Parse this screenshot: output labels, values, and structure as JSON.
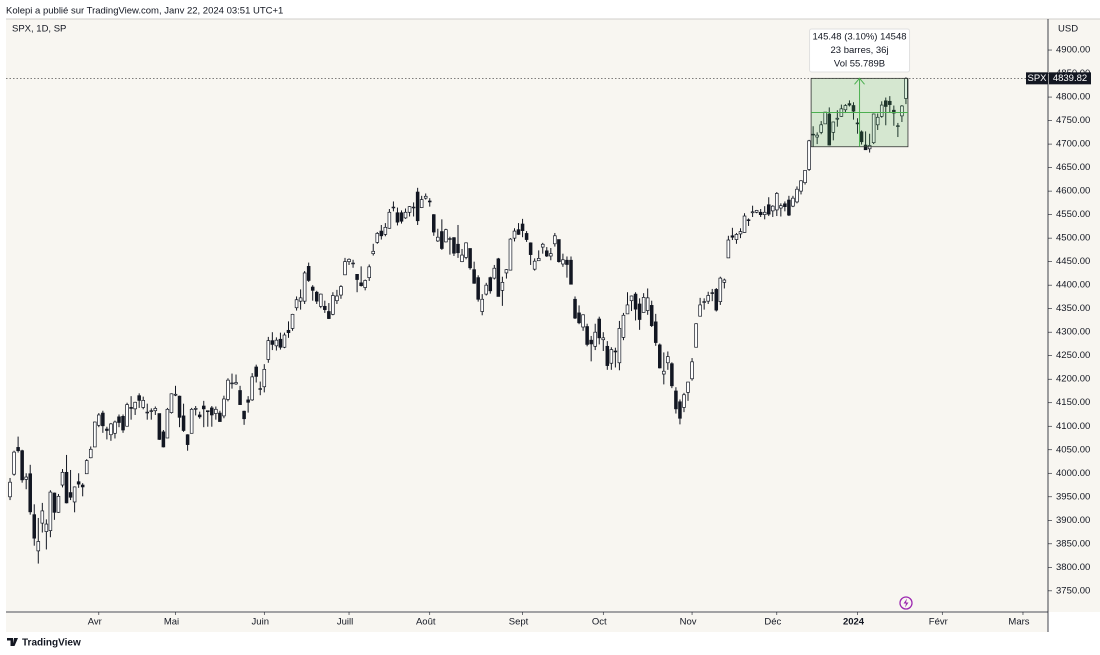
{
  "header": "Kolepi a publié sur TradingView.com, Janv 22, 2024 03:51 UTC+1",
  "footer": "TradingView",
  "chart_data": {
    "type": "candlestick",
    "title": "SPX, 1D, SP",
    "currency": "USD",
    "symbol": "SPX",
    "up_color": "#ffffff",
    "down_color": "#131722",
    "outline": "#131722",
    "xlim": [
      -1,
      257.2
    ],
    "ylim": [
      3705,
      4966
    ],
    "xticks": [
      {
        "value": 22,
        "label": "Avr"
      },
      {
        "value": 41,
        "label": "Mai"
      },
      {
        "value": 63,
        "label": "Juin"
      },
      {
        "value": 84,
        "label": "Juill"
      },
      {
        "value": 104,
        "label": "Août"
      },
      {
        "value": 127,
        "label": "Sept"
      },
      {
        "value": 147,
        "label": "Oct"
      },
      {
        "value": 169,
        "label": "Nov"
      },
      {
        "value": 190,
        "label": "Déc"
      },
      {
        "value": 210,
        "label": "2024"
      },
      {
        "value": 231,
        "label": "Févr"
      },
      {
        "value": 251,
        "label": "Mars"
      }
    ],
    "yticks": [
      {
        "value": 3750,
        "label": "3750.00"
      },
      {
        "value": 3800,
        "label": "3800.00"
      },
      {
        "value": 3850,
        "label": "3850.00"
      },
      {
        "value": 3900,
        "label": "3900.00"
      },
      {
        "value": 3950,
        "label": "3950.00"
      },
      {
        "value": 4000,
        "label": "4000.00"
      },
      {
        "value": 4050,
        "label": "4050.00"
      },
      {
        "value": 4100,
        "label": "4100.00"
      },
      {
        "value": 4150,
        "label": "4150.00"
      },
      {
        "value": 4200,
        "label": "4200.00"
      },
      {
        "value": 4250,
        "label": "4250.00"
      },
      {
        "value": 4300,
        "label": "4300.00"
      },
      {
        "value": 4350,
        "label": "4350.00"
      },
      {
        "value": 4400,
        "label": "4400.00"
      },
      {
        "value": 4450,
        "label": "4450.00"
      },
      {
        "value": 4500,
        "label": "4500.00"
      },
      {
        "value": 4550,
        "label": "4550.00"
      },
      {
        "value": 4600,
        "label": "4600.00"
      },
      {
        "value": 4650,
        "label": "4650.00"
      },
      {
        "value": 4700,
        "label": "4700.00"
      },
      {
        "value": 4750,
        "label": "4750.00"
      },
      {
        "value": 4800,
        "label": "4800.00"
      },
      {
        "value": 4850,
        "label": "4850.00"
      },
      {
        "value": 4900,
        "label": "4900.00"
      }
    ],
    "measure": {
      "from_bar": 199,
      "to_bar": 222,
      "from_price": 4694.34,
      "to_price": 4839.82,
      "color": "#4caf50",
      "lines": [
        "145.48 (3.10%) 14548",
        "23 barres, 36j",
        "Vol 55.789B"
      ]
    },
    "ohlc": [
      [
        3950,
        3990,
        3943,
        3981
      ],
      [
        3998,
        4048,
        3995,
        4045
      ],
      [
        4055,
        4078,
        4044,
        4048
      ],
      [
        4048,
        4050,
        3980,
        3986
      ],
      [
        3987,
        4000,
        3966,
        3992
      ],
      [
        3999,
        4018,
        3912,
        3918
      ],
      [
        3912,
        3934,
        3846,
        3862
      ],
      [
        3835,
        3905,
        3808,
        3855
      ],
      [
        3894,
        3937,
        3874,
        3920
      ],
      [
        3876,
        3902,
        3838,
        3892
      ],
      [
        3878,
        3964,
        3864,
        3960
      ],
      [
        3958,
        3959,
        3901,
        3917
      ],
      [
        3917,
        3956,
        3916,
        3951
      ],
      [
        3975,
        4009,
        3970,
        4002
      ],
      [
        4002,
        4039,
        3936,
        3937
      ],
      [
        3959,
        4007,
        3943,
        3949
      ],
      [
        3939,
        3972,
        3917,
        3971
      ],
      [
        3982,
        4000,
        3969,
        3977
      ],
      [
        3975,
        3979,
        3951,
        3971
      ],
      [
        3999,
        4030,
        3999,
        4027
      ],
      [
        4033,
        4057,
        4032,
        4051
      ],
      [
        4056,
        4110,
        4056,
        4109
      ],
      [
        4102,
        4128,
        4098,
        4124
      ],
      [
        4128,
        4133,
        4086,
        4101
      ],
      [
        4094,
        4099,
        4072,
        4091
      ],
      [
        4082,
        4107,
        4069,
        4105
      ],
      [
        4085,
        4112,
        4074,
        4109
      ],
      [
        4120,
        4125,
        4098,
        4108
      ],
      [
        4121,
        4125,
        4086,
        4092
      ],
      [
        4100,
        4150,
        4100,
        4146
      ],
      [
        4140,
        4164,
        4114,
        4138
      ],
      [
        4137,
        4152,
        4124,
        4151
      ],
      [
        4165,
        4170,
        4139,
        4155
      ],
      [
        4140,
        4163,
        4136,
        4155
      ],
      [
        4130,
        4148,
        4114,
        4130
      ],
      [
        4132,
        4138,
        4114,
        4133
      ],
      [
        4133,
        4142,
        4124,
        4138
      ],
      [
        4127,
        4127,
        4071,
        4072
      ],
      [
        4088,
        4092,
        4055,
        4056
      ],
      [
        4075,
        4139,
        4075,
        4136
      ],
      [
        4129,
        4170,
        4127,
        4169
      ],
      [
        4166,
        4186,
        4164,
        4168
      ],
      [
        4164,
        4165,
        4098,
        4119
      ],
      [
        4122,
        4148,
        4088,
        4091
      ],
      [
        4082,
        4083,
        4048,
        4061
      ],
      [
        4085,
        4139,
        4085,
        4136
      ],
      [
        4136,
        4143,
        4123,
        4138
      ],
      [
        4124,
        4131,
        4116,
        4120
      ],
      [
        4143,
        4154,
        4098,
        4137
      ],
      [
        4133,
        4133,
        4099,
        4131
      ],
      [
        4139,
        4143,
        4099,
        4124
      ],
      [
        4127,
        4142,
        4114,
        4136
      ],
      [
        4128,
        4133,
        4110,
        4110
      ],
      [
        4122,
        4165,
        4117,
        4158
      ],
      [
        4157,
        4202,
        4153,
        4198
      ],
      [
        4191,
        4212,
        4180,
        4192
      ],
      [
        4190,
        4210,
        4188,
        4193
      ],
      [
        4176,
        4186,
        4146,
        4146
      ],
      [
        4132,
        4133,
        4103,
        4116
      ],
      [
        4156,
        4164,
        4129,
        4151
      ],
      [
        4156,
        4213,
        4154,
        4205
      ],
      [
        4226,
        4231,
        4193,
        4206
      ],
      [
        4180,
        4195,
        4166,
        4180
      ],
      [
        4184,
        4232,
        4172,
        4221
      ],
      [
        4242,
        4290,
        4235,
        4282
      ],
      [
        4282,
        4300,
        4262,
        4274
      ],
      [
        4271,
        4289,
        4261,
        4283
      ],
      [
        4285,
        4299,
        4263,
        4268
      ],
      [
        4268,
        4299,
        4266,
        4294
      ],
      [
        4304,
        4323,
        4288,
        4299
      ],
      [
        4308,
        4339,
        4303,
        4338
      ],
      [
        4352,
        4376,
        4346,
        4369
      ],
      [
        4366,
        4391,
        4348,
        4373
      ],
      [
        4366,
        4430,
        4360,
        4426
      ],
      [
        4440,
        4448,
        4407,
        4410
      ],
      [
        4396,
        4400,
        4367,
        4389
      ],
      [
        4385,
        4388,
        4360,
        4366
      ],
      [
        4355,
        4382,
        4351,
        4381
      ],
      [
        4355,
        4367,
        4341,
        4348
      ],
      [
        4344,
        4362,
        4328,
        4329
      ],
      [
        4338,
        4385,
        4336,
        4378
      ],
      [
        4367,
        4390,
        4360,
        4377
      ],
      [
        4379,
        4400,
        4371,
        4397
      ],
      [
        4422,
        4458,
        4422,
        4450
      ],
      [
        4450,
        4457,
        4443,
        4455
      ],
      [
        4447,
        4454,
        4437,
        4447
      ],
      [
        4423,
        4423,
        4385,
        4412
      ],
      [
        4405,
        4440,
        4397,
        4399
      ],
      [
        4395,
        4412,
        4389,
        4410
      ],
      [
        4416,
        4444,
        4409,
        4439
      ],
      [
        4467,
        4488,
        4463,
        4472
      ],
      [
        4491,
        4513,
        4488,
        4510
      ],
      [
        4515,
        4528,
        4497,
        4505
      ],
      [
        4508,
        4532,
        4504,
        4523
      ],
      [
        4521,
        4562,
        4520,
        4555
      ],
      [
        4566,
        4578,
        4557,
        4566
      ],
      [
        4554,
        4565,
        4527,
        4534
      ],
      [
        4554,
        4559,
        4531,
        4536
      ],
      [
        4543,
        4563,
        4541,
        4555
      ],
      [
        4555,
        4568,
        4546,
        4567
      ],
      [
        4565,
        4576,
        4546,
        4566
      ],
      [
        4598,
        4607,
        4528,
        4537
      ],
      [
        4565,
        4590,
        4564,
        4582
      ],
      [
        4585,
        4595,
        4582,
        4589
      ],
      [
        4579,
        4585,
        4567,
        4577
      ],
      [
        4550,
        4551,
        4505,
        4513
      ],
      [
        4494,
        4520,
        4492,
        4502
      ],
      [
        4514,
        4540,
        4475,
        4478
      ],
      [
        4492,
        4520,
        4491,
        4518
      ],
      [
        4498,
        4503,
        4465,
        4499
      ],
      [
        4501,
        4502,
        4462,
        4468
      ],
      [
        4487,
        4528,
        4458,
        4469
      ],
      [
        4450,
        4477,
        4449,
        4464
      ],
      [
        4459,
        4491,
        4455,
        4490
      ],
      [
        4478,
        4478,
        4433,
        4437
      ],
      [
        4433,
        4450,
        4403,
        4404
      ],
      [
        4416,
        4421,
        4365,
        4370
      ],
      [
        4344,
        4381,
        4336,
        4370
      ],
      [
        4381,
        4405,
        4378,
        4400
      ],
      [
        4416,
        4418,
        4382,
        4388
      ],
      [
        4415,
        4443,
        4412,
        4436
      ],
      [
        4456,
        4458,
        4376,
        4376
      ],
      [
        4389,
        4418,
        4356,
        4406
      ],
      [
        4426,
        4434,
        4414,
        4433
      ],
      [
        4432,
        4500,
        4432,
        4498
      ],
      [
        4500,
        4521,
        4493,
        4515
      ],
      [
        4518,
        4532,
        4507,
        4508
      ],
      [
        4530,
        4541,
        4502,
        4516
      ],
      [
        4510,
        4515,
        4492,
        4497
      ],
      [
        4490,
        4491,
        4443,
        4465
      ],
      [
        4434,
        4457,
        4431,
        4451
      ],
      [
        4452,
        4474,
        4452,
        4457
      ],
      [
        4481,
        4490,
        4467,
        4487
      ],
      [
        4473,
        4481,
        4460,
        4462
      ],
      [
        4462,
        4479,
        4453,
        4467
      ],
      [
        4488,
        4511,
        4482,
        4505
      ],
      [
        4497,
        4497,
        4448,
        4450
      ],
      [
        4445,
        4467,
        4439,
        4454
      ],
      [
        4453,
        4461,
        4416,
        4444
      ],
      [
        4453,
        4461,
        4402,
        4402
      ],
      [
        4370,
        4376,
        4328,
        4330
      ],
      [
        4341,
        4357,
        4317,
        4320
      ],
      [
        4311,
        4338,
        4303,
        4337
      ],
      [
        4312,
        4318,
        4270,
        4274
      ],
      [
        4283,
        4292,
        4238,
        4275
      ],
      [
        4270,
        4318,
        4262,
        4300
      ],
      [
        4328,
        4333,
        4274,
        4288
      ],
      [
        4284,
        4300,
        4260,
        4288
      ],
      [
        4270,
        4281,
        4220,
        4229
      ],
      [
        4234,
        4268,
        4220,
        4263
      ],
      [
        4260,
        4267,
        4225,
        4258
      ],
      [
        4235,
        4324,
        4219,
        4308
      ],
      [
        4289,
        4341,
        4283,
        4336
      ],
      [
        4339,
        4385,
        4339,
        4358
      ],
      [
        4367,
        4378,
        4345,
        4377
      ],
      [
        4381,
        4385,
        4325,
        4349
      ],
      [
        4360,
        4372,
        4305,
        4327
      ],
      [
        4342,
        4383,
        4342,
        4374
      ],
      [
        4346,
        4393,
        4337,
        4373
      ],
      [
        4357,
        4367,
        4311,
        4314
      ],
      [
        4322,
        4339,
        4271,
        4278
      ],
      [
        4273,
        4276,
        4223,
        4224
      ],
      [
        4211,
        4257,
        4189,
        4217
      ],
      [
        4235,
        4259,
        4220,
        4248
      ],
      [
        4233,
        4236,
        4181,
        4186
      ],
      [
        4175,
        4183,
        4127,
        4137
      ],
      [
        4152,
        4157,
        4104,
        4117
      ],
      [
        4140,
        4171,
        4130,
        4167
      ],
      [
        4172,
        4194,
        4154,
        4194
      ],
      [
        4201,
        4245,
        4197,
        4237
      ],
      [
        4268,
        4319,
        4268,
        4318
      ],
      [
        4334,
        4373,
        4334,
        4358
      ],
      [
        4365,
        4372,
        4348,
        4365
      ],
      [
        4366,
        4386,
        4360,
        4378
      ],
      [
        4384,
        4392,
        4366,
        4383
      ],
      [
        4391,
        4394,
        4344,
        4347
      ],
      [
        4365,
        4418,
        4358,
        4415
      ],
      [
        4406,
        4414,
        4393,
        4411
      ],
      [
        4458,
        4505,
        4458,
        4496
      ],
      [
        4505,
        4522,
        4496,
        4502
      ],
      [
        4497,
        4511,
        4488,
        4508
      ],
      [
        4509,
        4521,
        4500,
        4514
      ],
      [
        4512,
        4553,
        4511,
        4547
      ],
      [
        4539,
        4542,
        4526,
        4538
      ],
      [
        4554,
        4569,
        4545,
        4556
      ],
      [
        4555,
        4560,
        4553,
        4559
      ],
      [
        4555,
        4562,
        4545,
        4550
      ],
      [
        4550,
        4568,
        4540,
        4555
      ],
      [
        4571,
        4587,
        4547,
        4551
      ],
      [
        4558,
        4570,
        4545,
        4568
      ],
      [
        4560,
        4598,
        4547,
        4595
      ],
      [
        4564,
        4574,
        4546,
        4569
      ],
      [
        4573,
        4578,
        4557,
        4567
      ],
      [
        4581,
        4590,
        4547,
        4549
      ],
      [
        4568,
        4590,
        4566,
        4585
      ],
      [
        4577,
        4610,
        4574,
        4604
      ],
      [
        4600,
        4623,
        4593,
        4622
      ],
      [
        4618,
        4644,
        4614,
        4644
      ],
      [
        4646,
        4709,
        4643,
        4707
      ],
      [
        4721,
        4738,
        4694,
        4720
      ],
      [
        4715,
        4725,
        4700,
        4719
      ],
      [
        4725,
        4749,
        4721,
        4741
      ],
      [
        4743,
        4768,
        4743,
        4768
      ],
      [
        4764,
        4778,
        4697,
        4698
      ],
      [
        4725,
        4748,
        4708,
        4747
      ],
      [
        4753,
        4772,
        4737,
        4755
      ],
      [
        4759,
        4784,
        4758,
        4775
      ],
      [
        4773,
        4785,
        4766,
        4782
      ],
      [
        4786,
        4793,
        4780,
        4783
      ],
      [
        4782,
        4789,
        4752,
        4770
      ],
      [
        4745,
        4755,
        4722,
        4743
      ],
      [
        4726,
        4729,
        4699,
        4705
      ],
      [
        4698,
        4727,
        4688,
        4688
      ],
      [
        4690,
        4722,
        4682,
        4697
      ],
      [
        4703,
        4765,
        4700,
        4764
      ],
      [
        4741,
        4765,
        4730,
        4757
      ],
      [
        4759,
        4791,
        4756,
        4783
      ],
      [
        4792,
        4799,
        4740,
        4780
      ],
      [
        4791,
        4802,
        4768,
        4784
      ],
      [
        4772,
        4782,
        4739,
        4766
      ],
      [
        4739,
        4745,
        4715,
        4739
      ],
      [
        4760,
        4783,
        4747,
        4781
      ],
      [
        4797,
        4842,
        4785,
        4839.82
      ]
    ]
  }
}
